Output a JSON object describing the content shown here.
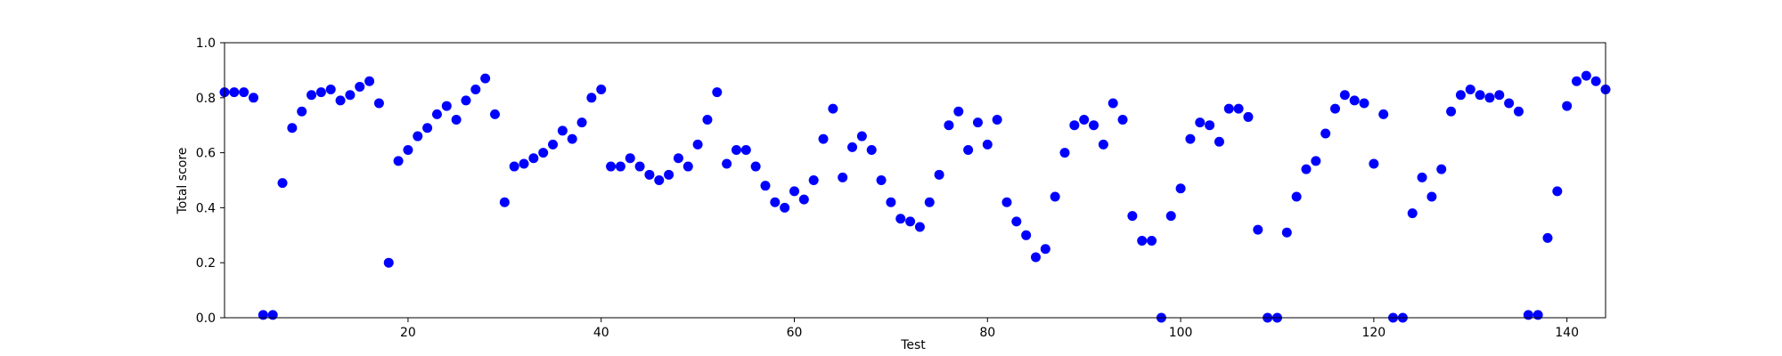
{
  "chart_data": {
    "type": "scatter",
    "title": "",
    "xlabel": "Test",
    "ylabel": "Total score",
    "xlim": [
      1,
      144
    ],
    "ylim": [
      0.0,
      1.0
    ],
    "grid": false,
    "marker_color": "#0000ff",
    "xticks": [
      20,
      40,
      60,
      80,
      100,
      120,
      140
    ],
    "xtick_labels": [
      "20",
      "40",
      "60",
      "80",
      "100",
      "120",
      "140"
    ],
    "yticks": [
      0.0,
      0.2,
      0.4,
      0.6,
      0.8,
      1.0
    ],
    "ytick_labels": [
      "0.0",
      "0.2",
      "0.4",
      "0.6",
      "0.8",
      "1.0"
    ],
    "series": [
      {
        "name": "Total score",
        "x": [
          1,
          2,
          3,
          4,
          5,
          6,
          7,
          8,
          9,
          10,
          11,
          12,
          13,
          14,
          15,
          16,
          17,
          18,
          19,
          20,
          21,
          22,
          23,
          24,
          25,
          26,
          27,
          28,
          29,
          30,
          31,
          32,
          33,
          34,
          35,
          36,
          37,
          38,
          39,
          40,
          41,
          42,
          43,
          44,
          45,
          46,
          47,
          48,
          49,
          50,
          51,
          52,
          53,
          54,
          55,
          56,
          57,
          58,
          59,
          60,
          61,
          62,
          63,
          64,
          65,
          66,
          67,
          68,
          69,
          70,
          71,
          72,
          73,
          74,
          75,
          76,
          77,
          78,
          79,
          80,
          81,
          82,
          83,
          84,
          85,
          86,
          87,
          88,
          89,
          90,
          91,
          92,
          93,
          94,
          95,
          96,
          97,
          98,
          99,
          100,
          101,
          102,
          103,
          104,
          105,
          106,
          107,
          108,
          109,
          110,
          111,
          112,
          113,
          114,
          115,
          116,
          117,
          118,
          119,
          120,
          121,
          122,
          123,
          124,
          125,
          126,
          127,
          128,
          129,
          130,
          131,
          132,
          133,
          134,
          135,
          136,
          137,
          138,
          139,
          140,
          141,
          142,
          143,
          144
        ],
        "y": [
          0.82,
          0.82,
          0.82,
          0.8,
          0.01,
          0.01,
          0.49,
          0.69,
          0.75,
          0.81,
          0.82,
          0.83,
          0.79,
          0.81,
          0.84,
          0.86,
          0.78,
          0.2,
          0.57,
          0.61,
          0.66,
          0.69,
          0.74,
          0.77,
          0.72,
          0.79,
          0.83,
          0.87,
          0.74,
          0.42,
          0.55,
          0.56,
          0.58,
          0.6,
          0.63,
          0.68,
          0.65,
          0.71,
          0.8,
          0.83,
          0.55,
          0.55,
          0.58,
          0.55,
          0.52,
          0.5,
          0.52,
          0.58,
          0.55,
          0.63,
          0.72,
          0.82,
          0.56,
          0.61,
          0.61,
          0.55,
          0.48,
          0.42,
          0.4,
          0.46,
          0.43,
          0.5,
          0.65,
          0.76,
          0.51,
          0.62,
          0.66,
          0.61,
          0.5,
          0.42,
          0.36,
          0.35,
          0.33,
          0.42,
          0.52,
          0.7,
          0.75,
          0.61,
          0.71,
          0.63,
          0.72,
          0.42,
          0.35,
          0.3,
          0.22,
          0.25,
          0.44,
          0.6,
          0.7,
          0.72,
          0.7,
          0.63,
          0.78,
          0.72,
          0.37,
          0.28,
          0.28,
          0.0,
          0.37,
          0.47,
          0.65,
          0.71,
          0.7,
          0.64,
          0.76,
          0.76,
          0.73,
          0.32,
          0.0,
          0.0,
          0.31,
          0.44,
          0.54,
          0.57,
          0.67,
          0.76,
          0.81,
          0.79,
          0.78,
          0.56,
          0.74,
          0.0,
          0.0,
          0.38,
          0.51,
          0.44,
          0.54,
          0.75,
          0.81,
          0.83,
          0.81,
          0.8,
          0.81,
          0.78,
          0.75,
          0.01,
          0.01,
          0.29,
          0.46,
          0.77,
          0.86,
          0.88,
          0.86,
          0.83
        ]
      }
    ]
  }
}
